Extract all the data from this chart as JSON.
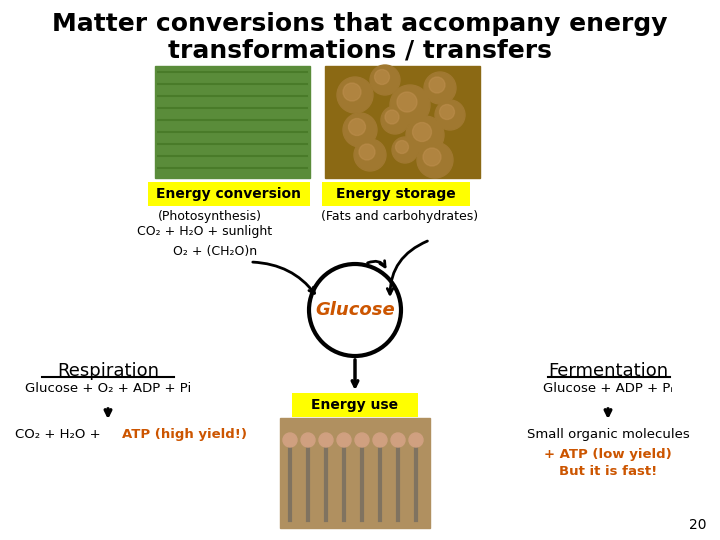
{
  "title_line1": "Matter conversions that accompany energy",
  "title_line2": "transformations / transfers",
  "bg_color": "#ffffff",
  "yellow_bg": "#ffff00",
  "orange_color": "#cc5500",
  "label_energy_conversion": "Energy conversion",
  "label_energy_storage": "Energy storage",
  "label_photosynthesis": "(Photosynthesis)",
  "label_fats": "(Fats and carbohydrates)",
  "eq1": "CO₂ + H₂O + sunlight",
  "eq2": "O₂ + (CH₂O)n",
  "glucose_label": "Glucose",
  "energy_use_label": "Energy use",
  "respiration_title": "Respiration",
  "respiration_reactants": "Glucose + O₂ + ADP + Pi",
  "respiration_products_black": "CO₂ + H₂O + ",
  "respiration_products_orange": "ATP (high yield!)",
  "fermentation_title": "Fermentation",
  "fermentation_reactants": "Glucose + ADP + Pᵢ",
  "fermentation_products_black": "Small organic molecules",
  "fermentation_products_orange1": "+ ATP (low yield)",
  "fermentation_products_orange2": "But it is fast!",
  "page_number": "20"
}
